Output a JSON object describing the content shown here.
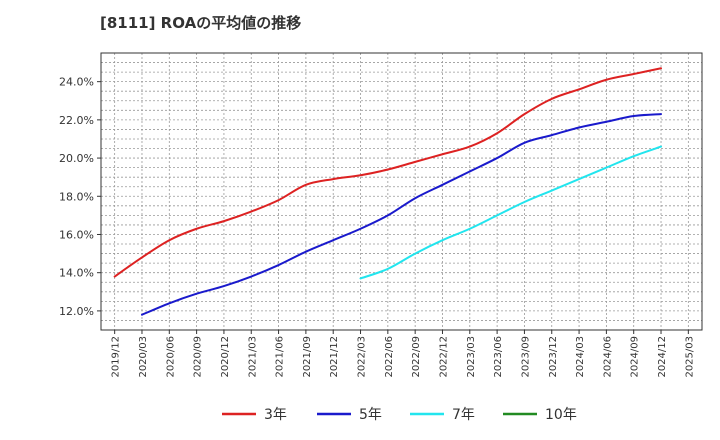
{
  "chart_data": {
    "type": "line",
    "title": "[8111]  ROAの平均値の推移",
    "xlabel": "",
    "ylabel": "",
    "ylim": [
      11.0,
      25.5
    ],
    "yticks": [
      12.0,
      14.0,
      16.0,
      18.0,
      20.0,
      22.0,
      24.0
    ],
    "ytick_labels": [
      "12.0%",
      "14.0%",
      "16.0%",
      "18.0%",
      "20.0%",
      "22.0%",
      "24.0%"
    ],
    "xticks": [
      "2019/12",
      "2020/03",
      "2020/06",
      "2020/09",
      "2020/12",
      "2021/03",
      "2021/06",
      "2021/09",
      "2021/12",
      "2022/03",
      "2022/06",
      "2022/09",
      "2022/12",
      "2023/03",
      "2023/06",
      "2023/09",
      "2023/12",
      "2024/03",
      "2024/06",
      "2024/09",
      "2024/12",
      "2025/03"
    ],
    "grid": true,
    "legend_position": "bottom",
    "series": [
      {
        "name": "3年",
        "color": "#dd2222",
        "x": [
          "2019/12",
          "2020/03",
          "2020/06",
          "2020/09",
          "2020/12",
          "2021/03",
          "2021/06",
          "2021/09",
          "2021/12",
          "2022/03",
          "2022/06",
          "2022/09",
          "2022/12",
          "2023/03",
          "2023/06",
          "2023/09",
          "2023/12",
          "2024/03",
          "2024/06",
          "2024/09",
          "2024/12"
        ],
        "values": [
          13.8,
          14.8,
          15.7,
          16.3,
          16.7,
          17.2,
          17.8,
          18.6,
          18.9,
          19.1,
          19.4,
          19.8,
          20.2,
          20.6,
          21.3,
          22.3,
          23.1,
          23.6,
          24.1,
          24.4,
          24.7
        ]
      },
      {
        "name": "5年",
        "color": "#1a1acc",
        "x": [
          "2020/03",
          "2020/06",
          "2020/09",
          "2020/12",
          "2021/03",
          "2021/06",
          "2021/09",
          "2021/12",
          "2022/03",
          "2022/06",
          "2022/09",
          "2022/12",
          "2023/03",
          "2023/06",
          "2023/09",
          "2023/12",
          "2024/03",
          "2024/06",
          "2024/09",
          "2024/12"
        ],
        "values": [
          11.8,
          12.4,
          12.9,
          13.3,
          13.8,
          14.4,
          15.1,
          15.7,
          16.3,
          17.0,
          17.9,
          18.6,
          19.3,
          20.0,
          20.8,
          21.2,
          21.6,
          21.9,
          22.2,
          22.3
        ]
      },
      {
        "name": "7年",
        "color": "#22e5ee",
        "x": [
          "2022/03",
          "2022/06",
          "2022/09",
          "2022/12",
          "2023/03",
          "2023/06",
          "2023/09",
          "2023/12",
          "2024/03",
          "2024/06",
          "2024/09",
          "2024/12"
        ],
        "values": [
          13.7,
          14.2,
          15.0,
          15.7,
          16.3,
          17.0,
          17.7,
          18.3,
          18.9,
          19.5,
          20.1,
          20.6
        ]
      },
      {
        "name": "10年",
        "color": "#228b22",
        "x": [],
        "values": []
      }
    ]
  }
}
